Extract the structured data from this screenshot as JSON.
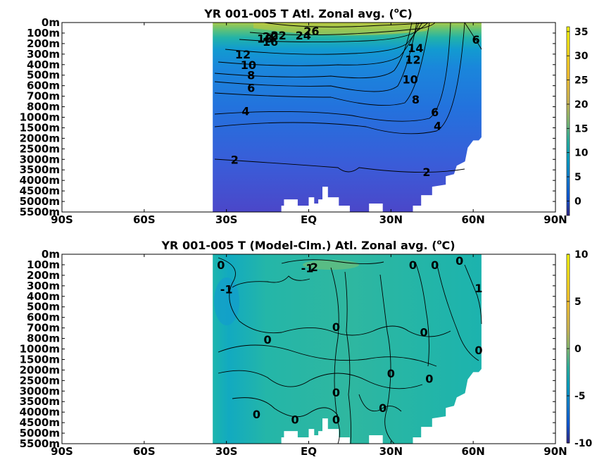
{
  "chart_data": [
    {
      "type": "heatmap",
      "title": "YR 001-005 T Atl. Zonal avg. (",
      "title_super": "o",
      "title_unit": "C)",
      "xlim": [
        -90,
        90
      ],
      "x_ticks": [
        -90,
        -60,
        -30,
        0,
        30,
        60,
        90
      ],
      "x_tick_labels": [
        "90S",
        "60S",
        "30S",
        "EQ",
        "30N",
        "60N",
        "90N"
      ],
      "y_tick_labels": [
        "0m",
        "100m",
        "200m",
        "300m",
        "400m",
        "500m",
        "600m",
        "700m",
        "800m",
        "1000m",
        "1500m",
        "2000m",
        "2500m",
        "3000m",
        "3500m",
        "4000m",
        "4500m",
        "5000m",
        "5500m"
      ],
      "colorbar": {
        "ticks": [
          0,
          5,
          10,
          15,
          20,
          25,
          30,
          35
        ],
        "tick_labels": [
          "0",
          "5",
          "10",
          "15",
          "20",
          "25",
          "30",
          "35"
        ],
        "range": [
          -3,
          36
        ]
      },
      "contour_labels": [
        {
          "text": "26",
          "lat": 1,
          "level": 0.8
        },
        {
          "text": "24",
          "lat": -2,
          "level": 1.2
        },
        {
          "text": "22",
          "lat": -11,
          "level": 1.2
        },
        {
          "text": "20",
          "lat": -14,
          "level": 1.3
        },
        {
          "text": "18",
          "lat": -16,
          "level": 1.5
        },
        {
          "text": "16",
          "lat": -14,
          "level": 1.8
        },
        {
          "text": "12",
          "lat": -24,
          "level": 3.0
        },
        {
          "text": "10",
          "lat": -22,
          "level": 4.0
        },
        {
          "text": "8",
          "lat": -21,
          "level": 5.0
        },
        {
          "text": "6",
          "lat": -21,
          "level": 6.2
        },
        {
          "text": "4",
          "lat": -23,
          "level": 8.4
        },
        {
          "text": "2",
          "lat": -27,
          "level": 13.0
        },
        {
          "text": "14",
          "lat": 39,
          "level": 2.4
        },
        {
          "text": "12",
          "lat": 38,
          "level": 3.5
        },
        {
          "text": "10",
          "lat": 37,
          "level": 5.4
        },
        {
          "text": "8",
          "lat": 39,
          "level": 7.3
        },
        {
          "text": "6",
          "lat": 46,
          "level": 8.5
        },
        {
          "text": "4",
          "lat": 47,
          "level": 9.8
        },
        {
          "text": "2",
          "lat": 43,
          "level": 14.2
        },
        {
          "text": "6",
          "lat": 61,
          "level": 1.6
        }
      ]
    },
    {
      "type": "heatmap",
      "title": "YR 001-005 T (Model-Clm.) Atl. Zonal avg. (",
      "title_super": "o",
      "title_unit": "C)",
      "xlim": [
        -90,
        90
      ],
      "x_ticks": [
        -90,
        -60,
        -30,
        0,
        30,
        60,
        90
      ],
      "x_tick_labels": [
        "90S",
        "60S",
        "30S",
        "EQ",
        "30N",
        "60N",
        "90N"
      ],
      "y_tick_labels": [
        "0m",
        "100m",
        "200m",
        "300m",
        "400m",
        "500m",
        "600m",
        "700m",
        "800m",
        "1000m",
        "1500m",
        "2000m",
        "2500m",
        "3000m",
        "3500m",
        "4000m",
        "4500m",
        "5000m",
        "5500m"
      ],
      "colorbar": {
        "ticks": [
          -10,
          -5,
          0,
          5,
          10
        ],
        "tick_labels": [
          "-10",
          "-5",
          "0",
          "5",
          "10"
        ],
        "range": [
          -10,
          10
        ]
      },
      "contour_labels": [
        {
          "text": "0",
          "lat": -32,
          "level": 1.0
        },
        {
          "text": "-1",
          "lat": -30,
          "level": 3.3
        },
        {
          "text": "-1",
          "lat": -0.5,
          "level": 1.3
        },
        {
          "text": "2",
          "lat": 2,
          "level": 1.2
        },
        {
          "text": "0",
          "lat": 38,
          "level": 1.0
        },
        {
          "text": "0",
          "lat": 46,
          "level": 1.0
        },
        {
          "text": "0",
          "lat": 55,
          "level": 0.6
        },
        {
          "text": "1",
          "lat": 62,
          "level": 3.2
        },
        {
          "text": "0",
          "lat": 10,
          "level": 6.9
        },
        {
          "text": "0",
          "lat": -15,
          "level": 8.1
        },
        {
          "text": "0",
          "lat": 42,
          "level": 7.4
        },
        {
          "text": "0",
          "lat": 62,
          "level": 9.1
        },
        {
          "text": "0",
          "lat": 30,
          "level": 11.3
        },
        {
          "text": "0",
          "lat": 44,
          "level": 11.8
        },
        {
          "text": "0",
          "lat": 10,
          "level": 13.1
        },
        {
          "text": "0",
          "lat": -19,
          "level": 15.2
        },
        {
          "text": "0",
          "lat": 27,
          "level": 14.6
        },
        {
          "text": "0",
          "lat": -5,
          "level": 15.7
        },
        {
          "text": "0",
          "lat": 10,
          "level": 15.7
        }
      ]
    }
  ]
}
